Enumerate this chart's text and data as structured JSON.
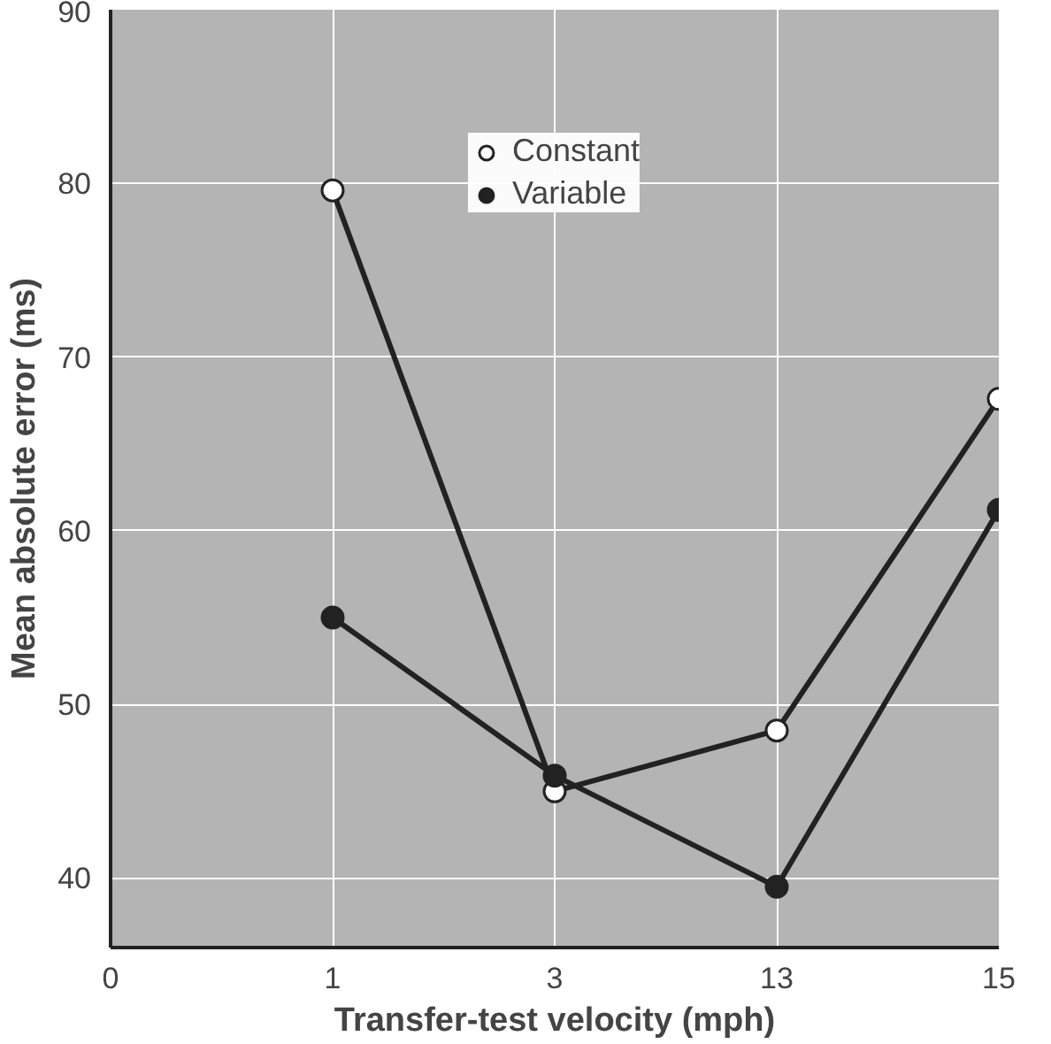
{
  "chart_data": {
    "type": "line",
    "xlabel": "Transfer-test velocity (mph)",
    "ylabel": "Mean absolute error (ms)",
    "categories": [
      "0",
      "1",
      "3",
      "13",
      "15"
    ],
    "series": [
      {
        "name": "Constant",
        "color": "#ffffff",
        "values": [
          null,
          79.6,
          45,
          48.5,
          67.6
        ]
      },
      {
        "name": "Variable",
        "color": "#222222",
        "values": [
          null,
          55,
          45.9,
          39.5,
          61.2
        ]
      }
    ],
    "ylim": [
      36,
      90
    ],
    "yticks": [
      40,
      50,
      60,
      70,
      80,
      90
    ],
    "grid": true,
    "legend": "top",
    "marker": "circle",
    "line_style": "solid"
  }
}
